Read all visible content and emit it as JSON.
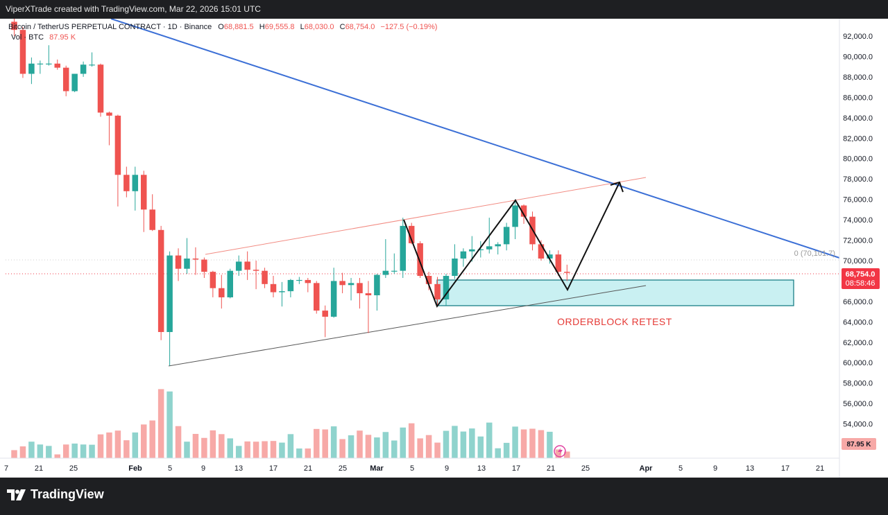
{
  "watermark": "ViperXTrade created with TradingView.com, Mar 22, 2026 15:01 UTC",
  "legend": {
    "symbol": "Bitcoin / TetherUS PERPETUAL CONTRACT · 1D · Binance",
    "open_label": "O",
    "open": "68,881.5",
    "high_label": "H",
    "high": "69,555.8",
    "low_label": "L",
    "low": "68,030.0",
    "close_label": "C",
    "close": "68,754.0",
    "change": "−127.5 (−0.19%)",
    "vol_label": "Vol · BTC",
    "vol_value": "87.95 K"
  },
  "price_axis": {
    "ticks": [
      "92,000.0",
      "90,000.0",
      "88,000.0",
      "86,000.0",
      "84,000.0",
      "82,000.0",
      "80,000.0",
      "78,000.0",
      "76,000.0",
      "74,000.0",
      "72,000.0",
      "70,000.0",
      "66,000.0",
      "64,000.0",
      "62,000.0",
      "60,000.0",
      "58,000.0",
      "56,000.0",
      "54,000.0"
    ],
    "last_price": "68,754.0",
    "countdown": "08:58:46",
    "volume_badge": "87.95 K"
  },
  "time_axis": {
    "labels": [
      "7",
      "21",
      "25",
      "Feb",
      "5",
      "9",
      "13",
      "17",
      "21",
      "25",
      "Mar",
      "5",
      "9",
      "13",
      "17",
      "21",
      "25",
      "Apr",
      "5",
      "9",
      "13",
      "17",
      "21"
    ]
  },
  "annotations": {
    "orderblock_text": "ORDERBLOCK RETEST",
    "fib_label": "0 (70,101.7)"
  },
  "colors": {
    "up": "#26a69a",
    "down": "#ef5350",
    "vol_up": "#8fd3cd",
    "vol_down": "#f7a9a7",
    "trendline_blue": "#3b6fd6",
    "wedge_upper": "#f28b82",
    "orderblock_fill": "#c9f0f2",
    "orderblock_border": "#1a7f86",
    "label_red": "#e53935",
    "price_badge": "#f23645"
  },
  "chart_data": {
    "type": "candlestick",
    "title": "Bitcoin / TetherUS PERPETUAL CONTRACT · 1D · Binance",
    "ylim": [
      54000,
      93000
    ],
    "candles": [
      {
        "o": 93400,
        "h": 93800,
        "l": 92000,
        "c": 92600,
        "v": 0.34
      },
      {
        "o": 92600,
        "h": 92900,
        "l": 87900,
        "c": 88300,
        "v": 0.5
      },
      {
        "o": 88300,
        "h": 89900,
        "l": 87300,
        "c": 89300,
        "v": 0.7
      },
      {
        "o": 89300,
        "h": 89600,
        "l": 88300,
        "c": 89300,
        "v": 0.58
      },
      {
        "o": 89300,
        "h": 91100,
        "l": 89100,
        "c": 89300,
        "v": 0.52
      },
      {
        "o": 89300,
        "h": 89700,
        "l": 88700,
        "c": 88900,
        "v": 0.16
      },
      {
        "o": 88900,
        "h": 89100,
        "l": 86100,
        "c": 86600,
        "v": 0.58
      },
      {
        "o": 86600,
        "h": 88300,
        "l": 86500,
        "c": 88300,
        "v": 0.62
      },
      {
        "o": 88300,
        "h": 89500,
        "l": 88000,
        "c": 89200,
        "v": 0.58
      },
      {
        "o": 89200,
        "h": 90400,
        "l": 89000,
        "c": 89200,
        "v": 0.57
      },
      {
        "o": 89200,
        "h": 89300,
        "l": 84100,
        "c": 84500,
        "v": 1.01
      },
      {
        "o": 84500,
        "h": 84600,
        "l": 81300,
        "c": 84200,
        "v": 1.09
      },
      {
        "o": 84200,
        "h": 84300,
        "l": 75300,
        "c": 78400,
        "v": 1.17
      },
      {
        "o": 78400,
        "h": 79200,
        "l": 76200,
        "c": 76800,
        "v": 0.76
      },
      {
        "o": 76800,
        "h": 79200,
        "l": 74900,
        "c": 78400,
        "v": 1.09
      },
      {
        "o": 78400,
        "h": 78800,
        "l": 72800,
        "c": 75000,
        "v": 1.43
      },
      {
        "o": 75000,
        "h": 76500,
        "l": 72900,
        "c": 73000,
        "v": 1.6
      },
      {
        "o": 73000,
        "h": 73400,
        "l": 62200,
        "c": 63000,
        "v": 2.93
      },
      {
        "o": 63000,
        "h": 70900,
        "l": 59700,
        "c": 70500,
        "v": 2.83
      },
      {
        "o": 70500,
        "h": 71200,
        "l": 68000,
        "c": 69200,
        "v": 1.36
      },
      {
        "o": 69200,
        "h": 72200,
        "l": 68700,
        "c": 70200,
        "v": 0.7
      },
      {
        "o": 70200,
        "h": 71300,
        "l": 68600,
        "c": 70100,
        "v": 1.03
      },
      {
        "o": 70100,
        "h": 70300,
        "l": 68300,
        "c": 68900,
        "v": 0.86
      },
      {
        "o": 68900,
        "h": 69000,
        "l": 66400,
        "c": 67300,
        "v": 1.18
      },
      {
        "o": 67300,
        "h": 68600,
        "l": 65300,
        "c": 66400,
        "v": 1.02
      },
      {
        "o": 66400,
        "h": 69200,
        "l": 66300,
        "c": 69000,
        "v": 0.84
      },
      {
        "o": 69000,
        "h": 70500,
        "l": 68500,
        "c": 69900,
        "v": 0.52
      },
      {
        "o": 69900,
        "h": 70900,
        "l": 68100,
        "c": 69100,
        "v": 0.71
      },
      {
        "o": 69100,
        "h": 70000,
        "l": 67200,
        "c": 69000,
        "v": 0.7
      },
      {
        "o": 69000,
        "h": 69300,
        "l": 67300,
        "c": 67700,
        "v": 0.72
      },
      {
        "o": 67700,
        "h": 68500,
        "l": 66400,
        "c": 66900,
        "v": 0.73
      },
      {
        "o": 66900,
        "h": 67900,
        "l": 65500,
        "c": 67000,
        "v": 0.66
      },
      {
        "o": 67000,
        "h": 68200,
        "l": 66400,
        "c": 68100,
        "v": 1.02
      },
      {
        "o": 68100,
        "h": 68400,
        "l": 67700,
        "c": 68100,
        "v": 0.41
      },
      {
        "o": 68100,
        "h": 68300,
        "l": 66900,
        "c": 67800,
        "v": 0.41
      },
      {
        "o": 67800,
        "h": 68000,
        "l": 64800,
        "c": 65100,
        "v": 1.24
      },
      {
        "o": 65100,
        "h": 65600,
        "l": 62500,
        "c": 64500,
        "v": 1.22
      },
      {
        "o": 64500,
        "h": 69300,
        "l": 64400,
        "c": 68000,
        "v": 1.35
      },
      {
        "o": 68000,
        "h": 68800,
        "l": 66800,
        "c": 67600,
        "v": 0.81
      },
      {
        "o": 67600,
        "h": 68300,
        "l": 66100,
        "c": 67800,
        "v": 0.97
      },
      {
        "o": 67800,
        "h": 68300,
        "l": 65300,
        "c": 66800,
        "v": 1.17
      },
      {
        "o": 66800,
        "h": 68000,
        "l": 62900,
        "c": 66600,
        "v": 0.99
      },
      {
        "o": 66600,
        "h": 68700,
        "l": 65100,
        "c": 68600,
        "v": 0.88
      },
      {
        "o": 68600,
        "h": 72100,
        "l": 68300,
        "c": 69000,
        "v": 1.11
      },
      {
        "o": 69000,
        "h": 70700,
        "l": 68700,
        "c": 69000,
        "v": 0.75
      },
      {
        "o": 69000,
        "h": 74200,
        "l": 68300,
        "c": 73400,
        "v": 1.3
      },
      {
        "o": 73400,
        "h": 73700,
        "l": 71600,
        "c": 71700,
        "v": 1.48
      },
      {
        "o": 71700,
        "h": 71900,
        "l": 68300,
        "c": 68500,
        "v": 0.84
      },
      {
        "o": 68500,
        "h": 68900,
        "l": 67100,
        "c": 67700,
        "v": 0.98
      },
      {
        "o": 67700,
        "h": 68400,
        "l": 65700,
        "c": 66200,
        "v": 0.66
      },
      {
        "o": 66200,
        "h": 68700,
        "l": 65600,
        "c": 68500,
        "v": 1.16
      },
      {
        "o": 68500,
        "h": 71600,
        "l": 68200,
        "c": 70200,
        "v": 1.37
      },
      {
        "o": 70200,
        "h": 71200,
        "l": 69400,
        "c": 70900,
        "v": 1.13
      },
      {
        "o": 70900,
        "h": 72400,
        "l": 69900,
        "c": 71100,
        "v": 1.26
      },
      {
        "o": 71100,
        "h": 71900,
        "l": 70300,
        "c": 71100,
        "v": 0.92
      },
      {
        "o": 71100,
        "h": 74200,
        "l": 70700,
        "c": 71400,
        "v": 1.51
      },
      {
        "o": 71400,
        "h": 71800,
        "l": 70600,
        "c": 71600,
        "v": 0.42
      },
      {
        "o": 71600,
        "h": 73700,
        "l": 71000,
        "c": 73300,
        "v": 0.65
      },
      {
        "o": 73300,
        "h": 76000,
        "l": 72100,
        "c": 75400,
        "v": 1.34
      },
      {
        "o": 75400,
        "h": 75500,
        "l": 73600,
        "c": 74300,
        "v": 1.22
      },
      {
        "o": 74300,
        "h": 74800,
        "l": 71000,
        "c": 71600,
        "v": 1.25
      },
      {
        "o": 71600,
        "h": 72000,
        "l": 70000,
        "c": 70200,
        "v": 1.19
      },
      {
        "o": 70200,
        "h": 71000,
        "l": 69700,
        "c": 70600,
        "v": 1.12
      },
      {
        "o": 70600,
        "h": 71000,
        "l": 68500,
        "c": 68900,
        "v": 0.37
      },
      {
        "o": 68900,
        "h": 69600,
        "l": 68000,
        "c": 68800,
        "v": 0.28
      }
    ],
    "volume_unit": "relative (latest bar 87.95 K BTC)"
  }
}
